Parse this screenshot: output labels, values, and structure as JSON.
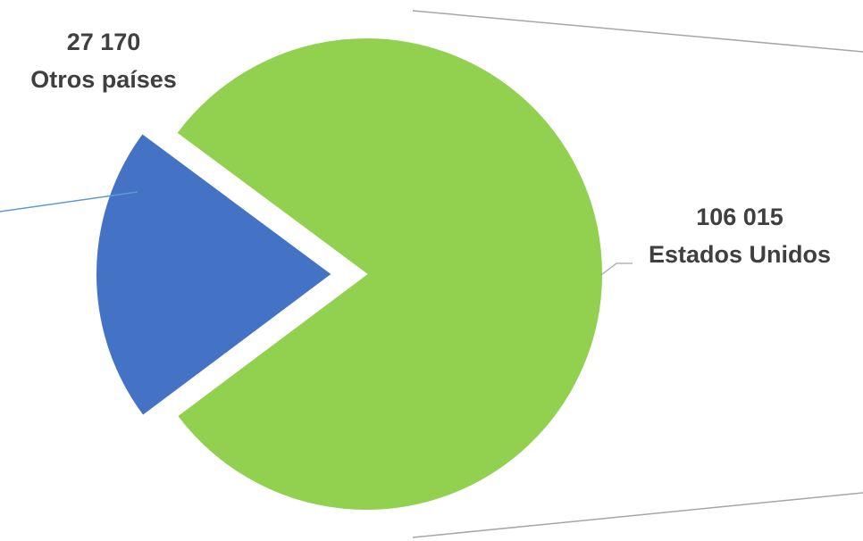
{
  "chart_data": {
    "type": "pie",
    "title": "",
    "slices": [
      {
        "label": "Otros países",
        "value": 27170,
        "value_label": "27 170",
        "color": "#4472c4",
        "exploded": true
      },
      {
        "label": "Estados Unidos",
        "value": 106015,
        "value_label": "106 015",
        "color": "#92d050",
        "exploded": false
      }
    ],
    "connector_color": "#5b9bd5",
    "leader_line_color": "#a6a6a6",
    "legend": "none"
  }
}
